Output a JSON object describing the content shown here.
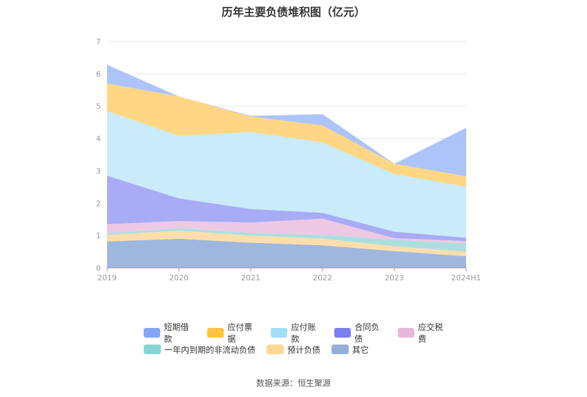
{
  "chart_data": {
    "type": "area",
    "stacked": true,
    "title": "历年主要负债堆积图（亿元）",
    "categories": [
      "2019",
      "2020",
      "2021",
      "2022",
      "2023",
      "2024H1"
    ],
    "ylim": [
      0,
      7
    ],
    "yticks": [
      "0",
      "1",
      "2",
      "3",
      "4",
      "5",
      "6",
      "7"
    ],
    "grid": true,
    "legend_position": "bottom",
    "series": [
      {
        "name": "其它",
        "color": "#9AB3DC",
        "values": [
          0.82,
          0.9,
          0.78,
          0.7,
          0.52,
          0.36
        ]
      },
      {
        "name": "预计负债",
        "color": "#FFDCA6",
        "values": [
          0.2,
          0.25,
          0.22,
          0.2,
          0.15,
          0.14
        ]
      },
      {
        "name": "一年内到期的非流动负债",
        "color": "#A6DDDD",
        "values": [
          0.05,
          0.08,
          0.08,
          0.12,
          0.2,
          0.25
        ]
      },
      {
        "name": "应交税费",
        "color": "#ECC6E2",
        "values": [
          0.28,
          0.22,
          0.32,
          0.5,
          0.05,
          0.08
        ]
      },
      {
        "name": "合同负债",
        "color": "#A3A6F4",
        "values": [
          1.5,
          0.7,
          0.42,
          0.18,
          0.2,
          0.1
        ]
      },
      {
        "name": "应付账款",
        "color": "#C6EAFA",
        "values": [
          2.0,
          1.93,
          2.38,
          2.18,
          1.78,
          1.58
        ]
      },
      {
        "name": "应付票据",
        "color": "#FFD57D",
        "values": [
          0.85,
          1.22,
          0.48,
          0.52,
          0.32,
          0.32
        ]
      },
      {
        "name": "短期借款",
        "color": "#A9C1FB",
        "values": [
          0.58,
          0.0,
          0.02,
          0.35,
          0.0,
          1.5
        ]
      }
    ]
  },
  "legend_rows": [
    [
      {
        "label": "短期借款",
        "color": "#85A6F6"
      },
      {
        "label": "应付票据",
        "color": "#FCC23F"
      },
      {
        "label": "应付账款",
        "color": "#A3DDF7"
      },
      {
        "label": "合同负债",
        "color": "#7C7FF1"
      },
      {
        "label": "应交税费",
        "color": "#E8B7DC"
      }
    ],
    [
      {
        "label": "一年内到期的非流动负债",
        "color": "#85D5D5"
      },
      {
        "label": "预计负债",
        "color": "#FFD693"
      },
      {
        "label": "其它",
        "color": "#94B0DA"
      }
    ]
  ],
  "source": "数据来源：恒生聚源"
}
